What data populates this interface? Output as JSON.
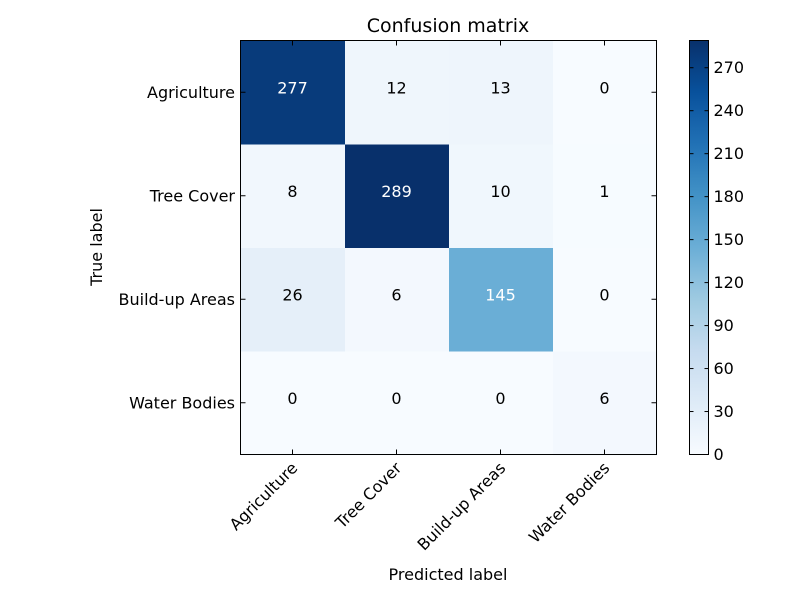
{
  "chart_data": {
    "type": "heatmap",
    "title": "Confusion matrix",
    "xlabel": "Predicted label",
    "ylabel": "True label",
    "x_categories": [
      "Agriculture",
      "Tree Cover",
      "Build-up Areas",
      "Water Bodies"
    ],
    "y_categories": [
      "Agriculture",
      "Tree Cover",
      "Build-up Areas",
      "Water Bodies"
    ],
    "values": [
      [
        277,
        12,
        13,
        0
      ],
      [
        8,
        289,
        10,
        1
      ],
      [
        26,
        6,
        145,
        0
      ],
      [
        0,
        0,
        0,
        6
      ]
    ],
    "colormap": "Blues",
    "color_range": [
      0,
      289
    ],
    "colorbar_ticks": [
      "0",
      "30",
      "60",
      "90",
      "120",
      "150",
      "180",
      "210",
      "240",
      "270"
    ],
    "colorbar_tick_values": [
      0,
      30,
      60,
      90,
      120,
      150,
      180,
      210,
      240,
      270
    ]
  }
}
